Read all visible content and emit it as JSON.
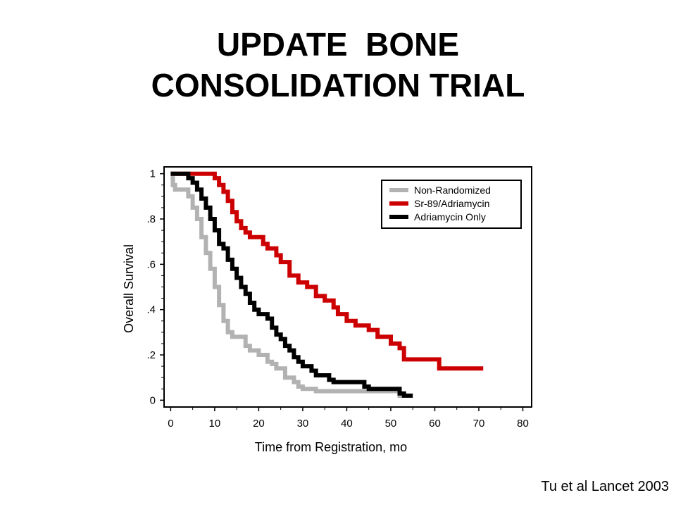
{
  "title": {
    "line1": "UPDATE  BONE",
    "line2": "CONSOLIDATION TRIAL"
  },
  "citation": "Tu et al Lancet 2003",
  "chart_data": {
    "type": "line",
    "step": true,
    "xlabel": "Time from Registration, mo",
    "ylabel": "Overall Survival",
    "xlim": [
      -1.5,
      82
    ],
    "ylim": [
      -0.03,
      1.03
    ],
    "xticks": [
      0,
      10,
      20,
      30,
      40,
      50,
      60,
      70,
      80
    ],
    "xtick_labels": [
      "0",
      "10",
      "20",
      "30",
      "40",
      "50",
      "60",
      "70",
      "80"
    ],
    "yticks": [
      0,
      0.2,
      0.4,
      0.6,
      0.8,
      1
    ],
    "ytick_labels": [
      "0",
      ".2",
      ".4",
      ".6",
      ".8",
      "1"
    ],
    "grid": false,
    "legend_position": "top-right",
    "series": [
      {
        "name": "Non-Randomized",
        "color": "#b2b2b2",
        "x": [
          0,
          0.5,
          1,
          4,
          5,
          6,
          7,
          8,
          9,
          10,
          11,
          12,
          13,
          14,
          17,
          18,
          20,
          22,
          23,
          24,
          26,
          28,
          29,
          30,
          33,
          52
        ],
        "y": [
          0.98,
          0.95,
          0.93,
          0.9,
          0.85,
          0.8,
          0.72,
          0.65,
          0.58,
          0.5,
          0.42,
          0.35,
          0.3,
          0.28,
          0.24,
          0.22,
          0.2,
          0.17,
          0.16,
          0.14,
          0.1,
          0.08,
          0.06,
          0.05,
          0.04,
          0.01
        ]
      },
      {
        "name": "Sr-89/Adriamycin",
        "color": "#cc0000",
        "x": [
          0,
          10,
          11,
          12,
          13,
          14,
          15,
          16,
          17,
          18,
          21,
          22,
          24,
          25,
          27,
          29,
          31,
          33,
          35,
          37,
          38,
          40,
          42,
          45,
          47,
          50,
          52,
          53,
          61,
          71
        ],
        "y": [
          1,
          0.98,
          0.95,
          0.92,
          0.88,
          0.83,
          0.79,
          0.76,
          0.74,
          0.72,
          0.69,
          0.67,
          0.64,
          0.61,
          0.55,
          0.52,
          0.5,
          0.46,
          0.44,
          0.41,
          0.38,
          0.35,
          0.33,
          0.31,
          0.28,
          0.25,
          0.23,
          0.18,
          0.14,
          0.14
        ]
      },
      {
        "name": "Adriamycin Only",
        "color": "#000000",
        "x": [
          0,
          4,
          5,
          6,
          7,
          8,
          9,
          10,
          11,
          12,
          13,
          14,
          15,
          16,
          17,
          18,
          19,
          20,
          22,
          23,
          24,
          25,
          26,
          27,
          28,
          29,
          30,
          32,
          33,
          36,
          37,
          44,
          45,
          52,
          53,
          55
        ],
        "y": [
          1,
          0.98,
          0.96,
          0.93,
          0.89,
          0.85,
          0.8,
          0.75,
          0.69,
          0.67,
          0.62,
          0.58,
          0.54,
          0.5,
          0.47,
          0.43,
          0.4,
          0.38,
          0.36,
          0.32,
          0.29,
          0.27,
          0.24,
          0.22,
          0.19,
          0.17,
          0.15,
          0.13,
          0.11,
          0.09,
          0.08,
          0.06,
          0.05,
          0.03,
          0.02,
          0.02
        ]
      }
    ]
  }
}
